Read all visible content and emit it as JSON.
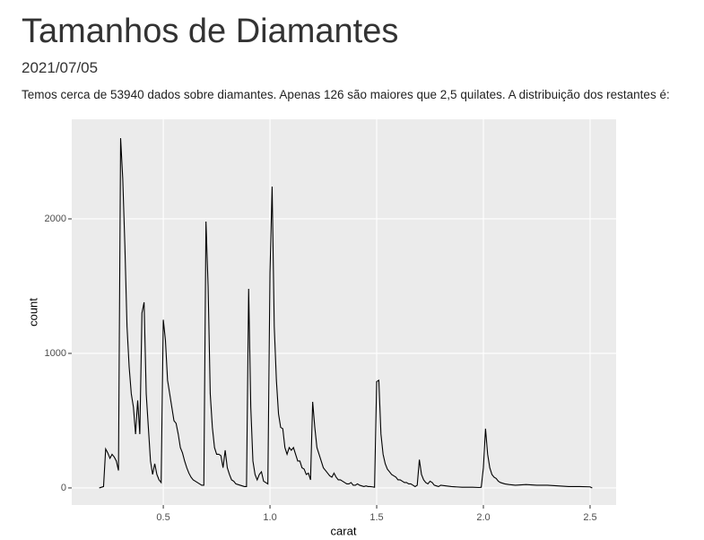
{
  "header": {
    "title": "Tamanhos de Diamantes",
    "date": "2021/07/05",
    "text": "Temos cerca de 53940 dados sobre diamantes. Apenas 126 são maiores que 2,5 quilates. A distribuição dos restantes é:"
  },
  "chart_data": {
    "type": "line",
    "x_label": "carat",
    "y_label": "count",
    "color": "#000000",
    "grid": true,
    "xlim": [
      0.071,
      2.622
    ],
    "ylim": [
      -127,
      2740
    ],
    "xticks": [
      0.5,
      {
        "value": 1,
        "label": "1.0"
      },
      1.5,
      {
        "value": 2,
        "label": "2.0"
      },
      2.5
    ],
    "yticks": [
      0,
      1000,
      2000
    ],
    "x": [
      0.2,
      0.21,
      0.22,
      0.23,
      0.24,
      0.25,
      0.26,
      0.27,
      0.28,
      0.29,
      0.3,
      0.31,
      0.32,
      0.33,
      0.34,
      0.35,
      0.36,
      0.37,
      0.38,
      0.39,
      0.4,
      0.41,
      0.42,
      0.43,
      0.44,
      0.45,
      0.46,
      0.47,
      0.48,
      0.49,
      0.5,
      0.51,
      0.52,
      0.53,
      0.54,
      0.55,
      0.56,
      0.57,
      0.58,
      0.59,
      0.6,
      0.61,
      0.62,
      0.63,
      0.64,
      0.65,
      0.66,
      0.67,
      0.68,
      0.69,
      0.7,
      0.71,
      0.72,
      0.73,
      0.74,
      0.75,
      0.76,
      0.77,
      0.78,
      0.79,
      0.8,
      0.81,
      0.82,
      0.83,
      0.84,
      0.85,
      0.86,
      0.87,
      0.88,
      0.89,
      0.9,
      0.91,
      0.92,
      0.93,
      0.94,
      0.95,
      0.96,
      0.97,
      0.98,
      0.99,
      1.0,
      1.01,
      1.02,
      1.03,
      1.04,
      1.05,
      1.06,
      1.07,
      1.08,
      1.09,
      1.1,
      1.11,
      1.12,
      1.13,
      1.14,
      1.15,
      1.16,
      1.17,
      1.18,
      1.19,
      1.2,
      1.21,
      1.22,
      1.23,
      1.24,
      1.25,
      1.26,
      1.27,
      1.28,
      1.29,
      1.3,
      1.31,
      1.32,
      1.33,
      1.34,
      1.35,
      1.36,
      1.37,
      1.38,
      1.39,
      1.4,
      1.41,
      1.42,
      1.43,
      1.44,
      1.45,
      1.46,
      1.47,
      1.48,
      1.49,
      1.5,
      1.51,
      1.52,
      1.53,
      1.54,
      1.55,
      1.56,
      1.57,
      1.58,
      1.59,
      1.6,
      1.61,
      1.62,
      1.63,
      1.64,
      1.65,
      1.66,
      1.67,
      1.68,
      1.69,
      1.7,
      1.71,
      1.72,
      1.73,
      1.74,
      1.75,
      1.76,
      1.77,
      1.78,
      1.79,
      1.8,
      1.85,
      1.9,
      1.95,
      1.98,
      1.99,
      2.0,
      2.01,
      2.02,
      2.03,
      2.04,
      2.05,
      2.06,
      2.07,
      2.08,
      2.1,
      2.12,
      2.15,
      2.2,
      2.25,
      2.3,
      2.35,
      2.4,
      2.45,
      2.5,
      2.51
    ],
    "values": [
      0,
      5,
      10,
      290,
      260,
      220,
      250,
      230,
      200,
      130,
      2600,
      2300,
      1800,
      1200,
      900,
      700,
      600,
      400,
      650,
      400,
      1300,
      1380,
      700,
      450,
      200,
      100,
      180,
      100,
      60,
      40,
      1250,
      1100,
      800,
      700,
      600,
      500,
      480,
      400,
      300,
      260,
      200,
      150,
      110,
      80,
      60,
      50,
      40,
      30,
      20,
      20,
      1980,
      1500,
      700,
      450,
      300,
      250,
      250,
      240,
      150,
      280,
      150,
      100,
      60,
      50,
      30,
      25,
      20,
      15,
      10,
      10,
      1480,
      600,
      200,
      100,
      60,
      100,
      120,
      50,
      40,
      30,
      1600,
      2240,
      1200,
      800,
      550,
      450,
      440,
      300,
      250,
      300,
      280,
      300,
      250,
      200,
      200,
      150,
      140,
      100,
      110,
      60,
      640,
      450,
      300,
      250,
      200,
      150,
      130,
      110,
      90,
      80,
      110,
      80,
      60,
      60,
      50,
      40,
      30,
      30,
      40,
      20,
      20,
      30,
      20,
      15,
      10,
      15,
      10,
      10,
      8,
      5,
      790,
      800,
      400,
      250,
      180,
      140,
      120,
      100,
      90,
      80,
      60,
      60,
      50,
      40,
      40,
      30,
      30,
      20,
      10,
      20,
      210,
      100,
      60,
      40,
      30,
      50,
      40,
      20,
      15,
      10,
      20,
      10,
      5,
      5,
      3,
      5,
      150,
      440,
      250,
      150,
      100,
      80,
      70,
      50,
      40,
      30,
      25,
      20,
      25,
      20,
      20,
      15,
      10,
      10,
      8,
      0
    ]
  }
}
